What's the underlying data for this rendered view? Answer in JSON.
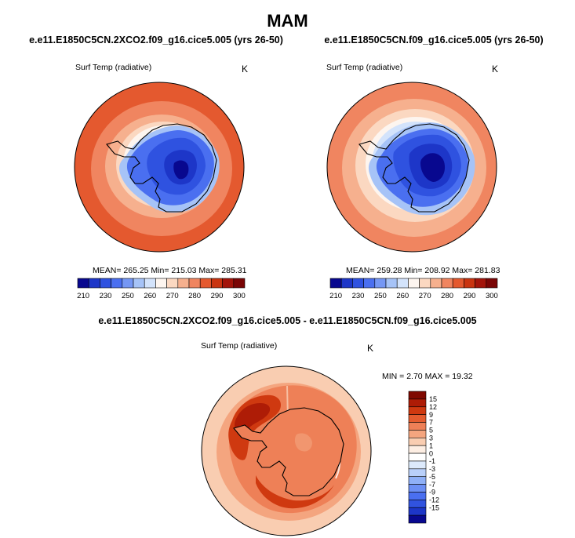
{
  "page": {
    "title": "MAM"
  },
  "colors": {
    "absolute_scale": [
      "#08088f",
      "#1d36c8",
      "#2f52e0",
      "#4a6ff0",
      "#7597f4",
      "#a6c3f7",
      "#d3e3fb",
      "#fdf5ef",
      "#fbd8c1",
      "#f6b08e",
      "#f08560",
      "#e4592f",
      "#c93410",
      "#a3140a",
      "#7a0505"
    ],
    "diff_scale": [
      "#08088f",
      "#1d36c8",
      "#3153df",
      "#4a6ff0",
      "#6c8ff4",
      "#8fb0f7",
      "#b9d0fa",
      "#ddeafc",
      "#ffffff",
      "#fdeee3",
      "#f9cdb1",
      "#f4a57f",
      "#ee8057",
      "#e45c2f",
      "#cf3910",
      "#ae1c06",
      "#7f0800"
    ]
  },
  "panels": [
    {
      "title": "e.e11.E1850C5CN.2XCO2.f09_g16.cice5.005 (yrs 26-50)",
      "variable": "Surf Temp (radiative)",
      "unit": "K",
      "stats": "MEAN= 265.25  Min= 215.03  Max= 285.31",
      "map_icon": "antarctic-polar-map-icon"
    },
    {
      "title": "e.e11.E1850C5CN.f09_g16.cice5.005 (yrs 26-50)",
      "variable": "Surf Temp (radiative)",
      "unit": "K",
      "stats": "MEAN= 259.28  Min= 208.92  Max= 281.83",
      "map_icon": "antarctic-polar-map-icon"
    },
    {
      "title": "e.e11.E1850C5CN.2XCO2.f09_g16.cice5.005 - e.e11.E1850C5CN.f09_g16.cice5.005",
      "variable": "Surf Temp (radiative)",
      "unit": "K",
      "stats": "MIN =   2.70 MAX =  19.32",
      "map_icon": "antarctic-polar-map-icon"
    }
  ],
  "chart_data": [
    {
      "type": "heatmap",
      "projection": "south polar stereographic",
      "title": "e.e11.E1850C5CN.2XCO2.f09_g16.cice5.005 (yrs 26-50)",
      "variable": "Surf Temp (radiative)",
      "unit": "K",
      "mean": 265.25,
      "min": 215.03,
      "max": 285.31,
      "colorbar_ticks": [
        "210",
        "230",
        "250",
        "260",
        "270",
        "280",
        "290",
        "300"
      ],
      "colorbar_tick_values": [
        210,
        230,
        250,
        260,
        270,
        280,
        290,
        300
      ],
      "colorbar_levels": [
        210,
        220,
        230,
        240,
        250,
        255,
        260,
        265,
        270,
        275,
        280,
        285,
        290,
        295,
        300
      ]
    },
    {
      "type": "heatmap",
      "projection": "south polar stereographic",
      "title": "e.e11.E1850C5CN.f09_g16.cice5.005 (yrs 26-50)",
      "variable": "Surf Temp (radiative)",
      "unit": "K",
      "mean": 259.28,
      "min": 208.92,
      "max": 281.83,
      "colorbar_ticks": [
        "210",
        "230",
        "250",
        "260",
        "270",
        "280",
        "290",
        "300"
      ],
      "colorbar_tick_values": [
        210,
        230,
        250,
        260,
        270,
        280,
        290,
        300
      ],
      "colorbar_levels": [
        210,
        220,
        230,
        240,
        250,
        255,
        260,
        265,
        270,
        275,
        280,
        285,
        290,
        295,
        300
      ]
    },
    {
      "type": "heatmap",
      "projection": "south polar stereographic",
      "title": "e.e11.E1850C5CN.2XCO2.f09_g16.cice5.005 - e.e11.E1850C5CN.f09_g16.cice5.005",
      "variable": "Surf Temp (radiative)",
      "unit": "K",
      "min": 2.7,
      "max": 19.32,
      "colorbar_ticks": [
        "15",
        "12",
        "9",
        "7",
        "5",
        "3",
        "1",
        "0",
        "-1",
        "-3",
        "-5",
        "-7",
        "-9",
        "-12",
        "-15"
      ],
      "colorbar_orientation": "vertical"
    }
  ]
}
